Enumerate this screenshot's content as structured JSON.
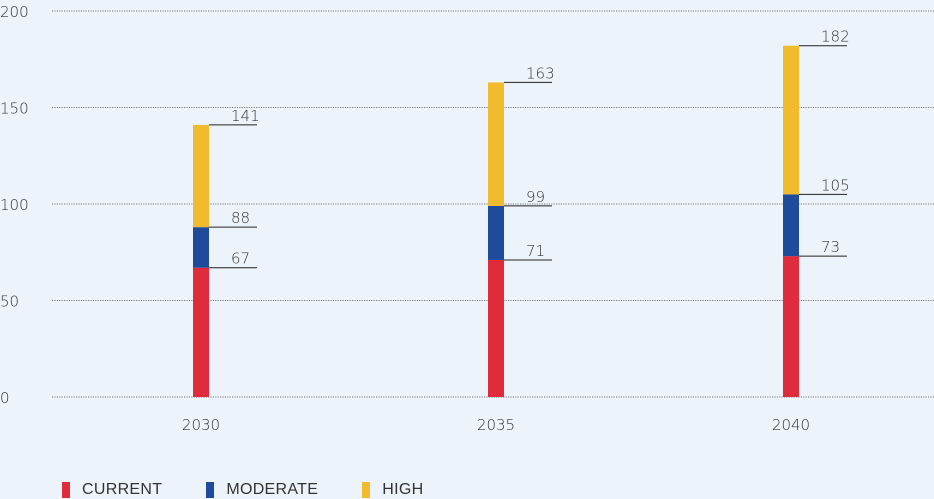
{
  "chart_data": {
    "type": "bar",
    "stacked": true,
    "categories": [
      "2030",
      "2035",
      "2040"
    ],
    "series": [
      {
        "name": "CURRENT",
        "color": "#e02b3c",
        "values": [
          67,
          71,
          73
        ]
      },
      {
        "name": "MODERATE",
        "color": "#1e4b9b",
        "values": [
          21,
          28,
          32
        ]
      },
      {
        "name": "HIGH",
        "color": "#f2bb2e",
        "values": [
          53,
          64,
          77
        ]
      }
    ],
    "cumulative_labels": [
      [
        "67",
        "88",
        "141"
      ],
      [
        "71",
        "99",
        "163"
      ],
      [
        "73",
        "105",
        "182"
      ]
    ],
    "y_ticks": [
      "0",
      "50",
      "100",
      "150",
      "200"
    ],
    "ylim": [
      0,
      200
    ],
    "title": "",
    "xlabel": "",
    "ylabel": "",
    "grid": true,
    "legend_position": "bottom-left"
  }
}
